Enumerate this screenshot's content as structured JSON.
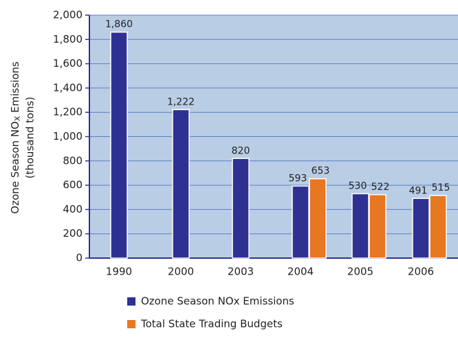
{
  "chart_data": {
    "type": "bar",
    "y_label": {
      "text": "Ozone Season NO",
      "subscript": "X",
      "suffix": " Emissions",
      "unit": "(thousand tons)"
    },
    "categories": [
      "1990",
      "2000",
      "2003",
      "2004",
      "2005",
      "2006"
    ],
    "series": [
      {
        "name": "Ozone Season NOx Emissions",
        "color": "#2e3192",
        "values": [
          1860,
          1222,
          820,
          593,
          530,
          491
        ],
        "value_labels": [
          "1,860",
          "1,222",
          "820",
          "593",
          "530",
          "491"
        ]
      },
      {
        "name": "Total State Trading Budgets",
        "color": "#e87722",
        "values": [
          null,
          null,
          null,
          653,
          522,
          515
        ],
        "value_labels": [
          null,
          null,
          null,
          "653",
          "522",
          "515"
        ]
      }
    ],
    "ylim": [
      0,
      2000
    ],
    "yticks": [
      0,
      {
        "value": 200,
        "label": "200"
      },
      {
        "value": 400,
        "label": "400"
      },
      {
        "value": 600,
        "label": "600"
      },
      {
        "value": 800,
        "label": "800"
      },
      {
        "value": 1000,
        "label": "1,000"
      },
      {
        "value": 1200,
        "label": "1,200"
      },
      {
        "value": 1400,
        "label": "1,400"
      },
      {
        "value": 1600,
        "label": "1,600"
      },
      {
        "value": 1800,
        "label": "1,800"
      },
      {
        "value": 2000,
        "label": "2,000"
      }
    ],
    "grid": true,
    "background": "#b9cde5"
  }
}
